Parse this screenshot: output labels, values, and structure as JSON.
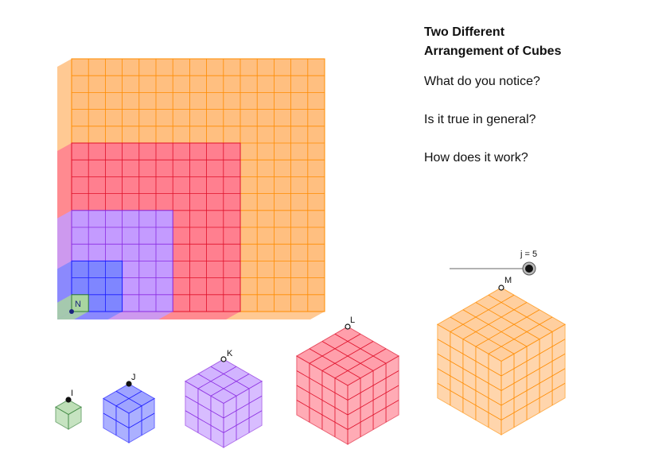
{
  "header": {
    "title_line1": "Two Different",
    "title_line2": "Arrangement of Cubes"
  },
  "questions": [
    "What do you notice?",
    "Is it true in general?",
    "How does it work?"
  ],
  "slider": {
    "label": "j = 5",
    "value": 5
  },
  "points": {
    "grid_origin": "N",
    "cube1": "I",
    "cube2": "J",
    "cube3": "K",
    "cube4": "L",
    "cube5": "M"
  },
  "colors": {
    "green": "#a9d5a0",
    "blue": "#7f86ff",
    "purple": "#c49bff",
    "red": "#ff7f8f",
    "orange": "#ffbf80"
  },
  "cubes": [
    {
      "n": 1,
      "label": "I",
      "color": "green"
    },
    {
      "n": 2,
      "label": "J",
      "color": "blue"
    },
    {
      "n": 3,
      "label": "K",
      "color": "purple"
    },
    {
      "n": 4,
      "label": "L",
      "color": "red"
    },
    {
      "n": 5,
      "label": "M",
      "color": "orange"
    }
  ]
}
